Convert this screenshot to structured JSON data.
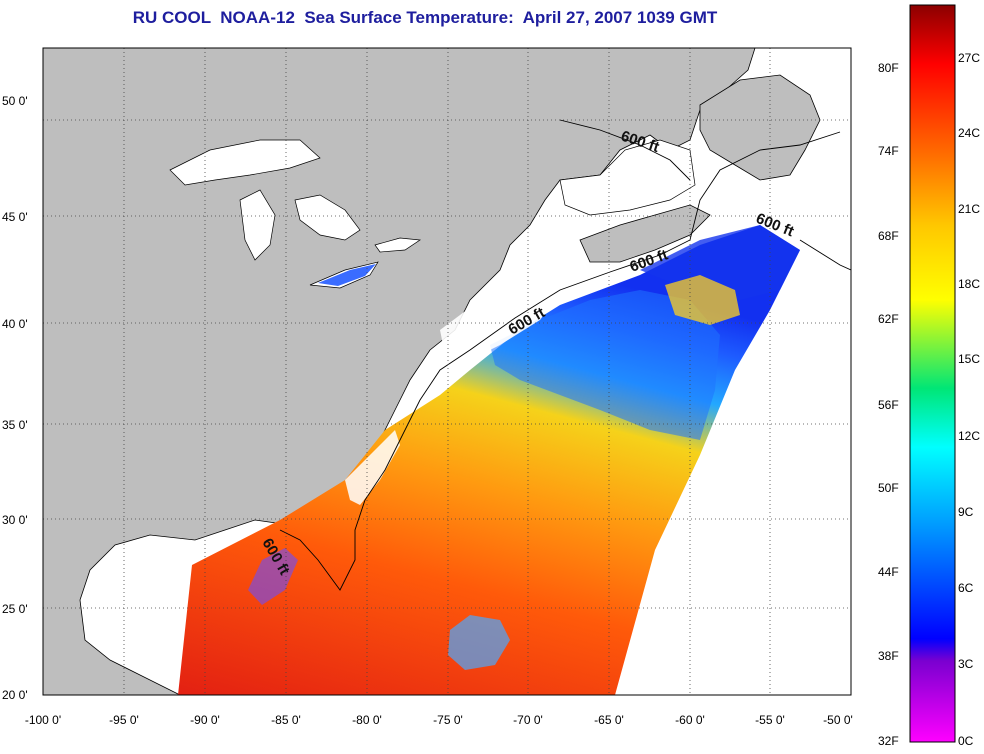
{
  "title": "RU COOL  NOAA-12  Sea Surface Temperature:  April 27, 2007 1039 GMT",
  "map": {
    "lon_ticks": [
      "-100 0'",
      "-95 0'",
      "-90 0'",
      "-85 0'",
      "-80 0'",
      "-75 0'",
      "-70 0'",
      "-65 0'",
      "-60 0'",
      "-55 0'",
      "-50 0'"
    ],
    "lat_ticks": [
      "50 0'",
      "45 0'",
      "40 0'",
      "35 0'",
      "30 0'",
      "25 0'",
      "20 0'"
    ],
    "contour_label": "600 ft",
    "land_color": "#bebebe",
    "ocean_nodata_color": "#ffffff"
  },
  "colorbar": {
    "fahrenheit_labels": [
      "80F",
      "74F",
      "68F",
      "62F",
      "56F",
      "50F",
      "44F",
      "38F",
      "32F"
    ],
    "celsius_labels": [
      "27C",
      "24C",
      "21C",
      "18C",
      "15C",
      "12C",
      "9C",
      "6C",
      "3C",
      "0C"
    ],
    "colors_top_to_bottom": [
      "#8b0000",
      "#ff0000",
      "#ff6a00",
      "#ffc800",
      "#ffff00",
      "#00e676",
      "#00ffff",
      "#00a0ff",
      "#0000ff",
      "#7a00d0",
      "#ff00ff"
    ]
  }
}
